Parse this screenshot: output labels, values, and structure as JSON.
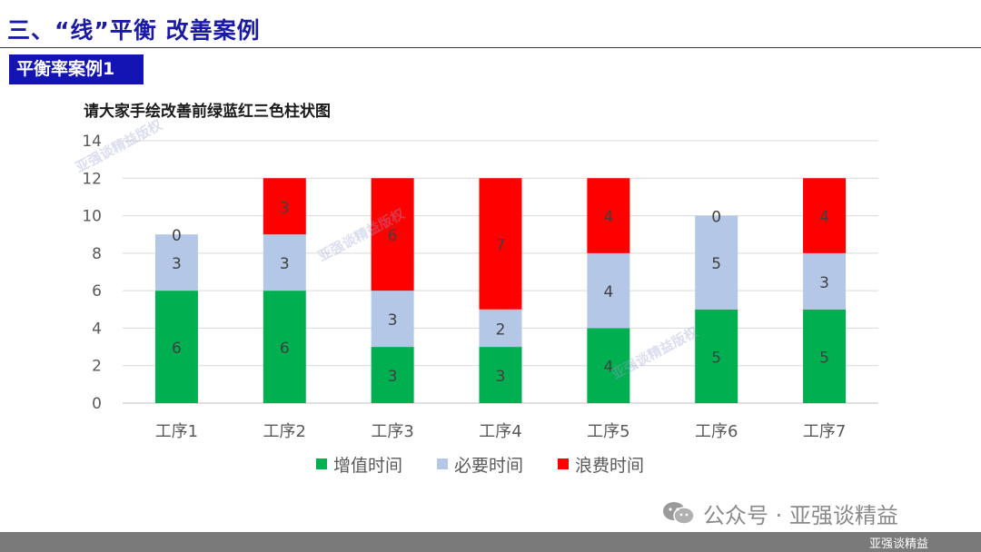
{
  "header": {
    "title": "三、“线”平衡 改善案例",
    "case_label": "平衡率案例1"
  },
  "colors": {
    "value_added": "#00b050",
    "necessary": "#b4c7e7",
    "waste": "#ff0000",
    "title_blue": "#1a1aa6",
    "label_bg": "#1414b4"
  },
  "chart_data": {
    "type": "bar",
    "stacked": true,
    "title": "请大家手绘改善前绿蓝红三色柱状图",
    "categories": [
      "工序1",
      "工序2",
      "工序3",
      "工序4",
      "工序5",
      "工序6",
      "工序7"
    ],
    "series": [
      {
        "name": "增值时间",
        "values": [
          6,
          6,
          3,
          3,
          4,
          5,
          5
        ]
      },
      {
        "name": "必要时间",
        "values": [
          3,
          3,
          3,
          2,
          4,
          5,
          3
        ]
      },
      {
        "name": "浪费时间",
        "values": [
          0,
          3,
          6,
          7,
          4,
          0,
          4
        ]
      }
    ],
    "ylim": [
      0,
      14
    ],
    "yticks": [
      0,
      2,
      4,
      6,
      8,
      10,
      12,
      14
    ],
    "grid": true,
    "legend": "bottom"
  },
  "footer": {
    "wechat": "公众号 · 亚强谈精益",
    "brand": "亚强谈精益"
  },
  "watermark_text": "亚强谈精益版权"
}
